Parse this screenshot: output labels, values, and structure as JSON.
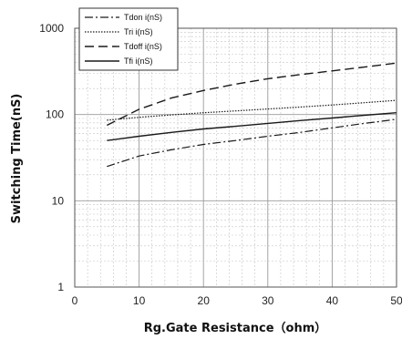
{
  "chart_data": {
    "type": "line",
    "title": "",
    "xlabel": "Rg.Gate Resistance（ohm）",
    "ylabel": "Switching Time(nS)",
    "xlim": [
      0,
      50
    ],
    "ylim": [
      1,
      1000
    ],
    "yscale": "log",
    "grid": true,
    "legend_position": "top-left",
    "x_ticks": [
      "0",
      "10",
      "20",
      "30",
      "40",
      "50"
    ],
    "y_ticks": [
      "1",
      "10",
      "100",
      "1000"
    ],
    "x": [
      5,
      10,
      15,
      20,
      25,
      30,
      35,
      40,
      45,
      50
    ],
    "series": [
      {
        "name": "Tdon i(nS)",
        "style": "dash-dot",
        "values": [
          25,
          33,
          39,
          45,
          50,
          56,
          62,
          70,
          79,
          88
        ]
      },
      {
        "name": "Tri i(nS)",
        "style": "dotted",
        "values": [
          86,
          93,
          99,
          105,
          110,
          116,
          122,
          129,
          137,
          146
        ]
      },
      {
        "name": "Tdoff i(nS)",
        "style": "dashed",
        "values": [
          75,
          115,
          155,
          190,
          225,
          260,
          290,
          320,
          355,
          395
        ]
      },
      {
        "name": "Tfi i(nS)",
        "style": "solid",
        "values": [
          50,
          56,
          62,
          68,
          73,
          79,
          85,
          91,
          98,
          105
        ]
      }
    ]
  }
}
